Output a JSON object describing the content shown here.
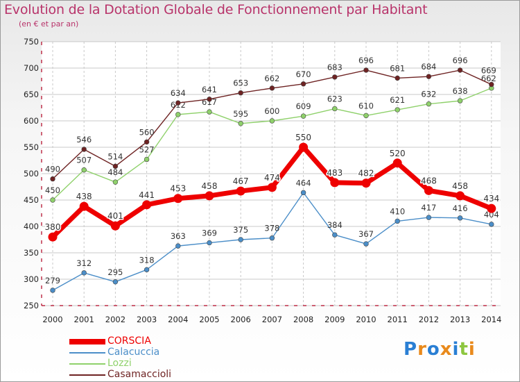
{
  "title": "Evolution de la Dotation Globale de Fonctionnement par Habitant",
  "subtitle": "(en € et par an)",
  "logo": {
    "letters": [
      "P",
      "r",
      "o",
      "x",
      "i",
      "t",
      "i"
    ],
    "colors": [
      "#2a7fd4",
      "#e98a1c",
      "#2a7fd4",
      "#e98a1c",
      "#2a7fd4",
      "#8dc63f",
      "#e98a1c"
    ]
  },
  "colors": {
    "title": "#b8336a",
    "axis": "#b00020",
    "grid": "#c8c8c8"
  },
  "chart_data": {
    "type": "line",
    "title": "Evolution de la Dotation Globale de Fonctionnement par Habitant",
    "subtitle": "(en € et par an)",
    "x": [
      2000,
      2001,
      2002,
      2003,
      2004,
      2005,
      2006,
      2007,
      2008,
      2009,
      2010,
      2011,
      2012,
      2013,
      2014
    ],
    "ylim": [
      250,
      750
    ],
    "yticks": [
      250,
      300,
      350,
      400,
      450,
      500,
      550,
      600,
      650,
      700,
      750
    ],
    "grid": true,
    "legend_position": "bottom-left",
    "series": [
      {
        "name": "CORSCIA",
        "color": "#ee0000",
        "values": [
          380,
          438,
          401,
          441,
          453,
          458,
          467,
          474,
          550,
          483,
          482,
          520,
          468,
          458,
          434
        ]
      },
      {
        "name": "Calacuccia",
        "color": "#4b8ec8",
        "values": [
          279,
          312,
          295,
          318,
          363,
          369,
          375,
          378,
          464,
          384,
          367,
          410,
          417,
          416,
          404
        ]
      },
      {
        "name": "Lozzi",
        "color": "#8fd16b",
        "values": [
          450,
          507,
          484,
          527,
          612,
          617,
          595,
          600,
          609,
          623,
          610,
          621,
          632,
          638,
          662
        ]
      },
      {
        "name": "Casamaccioli",
        "color": "#6e2323",
        "values": [
          490,
          546,
          514,
          560,
          634,
          641,
          653,
          662,
          670,
          683,
          696,
          681,
          684,
          696,
          669
        ]
      }
    ]
  }
}
